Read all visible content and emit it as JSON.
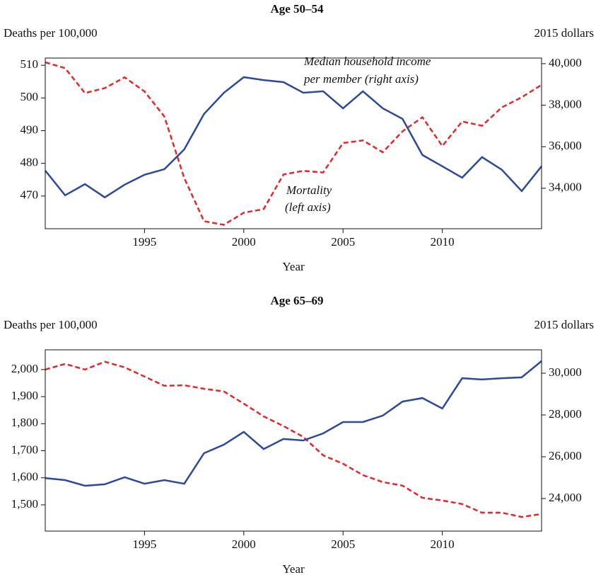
{
  "chart_data": [
    {
      "type": "line",
      "title": "Age 50–54",
      "y_label": "Deaths per 100,000",
      "y2_label": "2015 dollars",
      "x_label": "Year",
      "x": [
        1990,
        1991,
        1992,
        1993,
        1994,
        1995,
        1996,
        1997,
        1998,
        1999,
        2000,
        2001,
        2002,
        2003,
        2004,
        2005,
        2006,
        2007,
        2008,
        2009,
        2010,
        2011,
        2012,
        2013,
        2014,
        2015
      ],
      "xlim": [
        1990,
        2015
      ],
      "xticks": [
        1995,
        2000,
        2005,
        2010
      ],
      "ylim": [
        460,
        512.2
      ],
      "yticks": [
        470,
        480,
        490,
        500,
        510
      ],
      "y2lim": [
        32050,
        40270
      ],
      "y2ticks": [
        {
          "value": 34000,
          "label": "34,000"
        },
        {
          "value": 36000,
          "label": "36,000"
        },
        {
          "value": 38000,
          "label": "38,000"
        },
        {
          "value": 40000,
          "label": "40,000"
        }
      ],
      "series": [
        {
          "color": "#e8262a",
          "dashed": true,
          "axis": "y",
          "values": [
            510.9,
            509.1,
            501.5,
            503,
            506.3,
            502,
            494.3,
            475.5,
            462.3,
            461.2,
            464.9,
            466,
            476.6,
            477.7,
            477.2,
            486.2,
            487,
            483.4,
            489.8,
            494.1,
            485.3,
            492.8,
            491.5,
            497.1,
            500.2,
            504
          ]
        },
        {
          "color": "#2b4a9b",
          "dashed": false,
          "axis": "y2",
          "values": [
            34850,
            33660,
            34200,
            33560,
            34170,
            34650,
            34920,
            35870,
            37580,
            38600,
            39350,
            39210,
            39110,
            38600,
            38670,
            37850,
            38670,
            37850,
            37340,
            35600,
            35060,
            34510,
            35500,
            34890,
            33860,
            35060
          ]
        }
      ],
      "annotations": [
        {
          "lines": [
            "Median household income",
            "per member (right axis)"
          ]
        },
        {
          "lines": [
            "Mortality",
            "(left axis)"
          ]
        }
      ]
    },
    {
      "type": "line",
      "title": "Age 65–69",
      "y_label": "Deaths per 100,000",
      "y2_label": "2015 dollars",
      "x_label": "Year",
      "x": [
        1990,
        1991,
        1992,
        1993,
        1994,
        1995,
        1996,
        1997,
        1998,
        1999,
        2000,
        2001,
        2002,
        2003,
        2004,
        2005,
        2006,
        2007,
        2008,
        2009,
        2010,
        2011,
        2012,
        2013,
        2014,
        2015
      ],
      "xlim": [
        1990,
        2015
      ],
      "xticks": [
        1995,
        2000,
        2005,
        2010
      ],
      "ylim": [
        1403,
        2073
      ],
      "yticks": [
        {
          "value": 1500,
          "label": "1,500"
        },
        {
          "value": 1600,
          "label": "1,600"
        },
        {
          "value": 1700,
          "label": "1,700"
        },
        {
          "value": 1800,
          "label": "1,800"
        },
        {
          "value": 1900,
          "label": "1,900"
        },
        {
          "value": 2000,
          "label": "2,000"
        }
      ],
      "y2lim": [
        22440,
        31120
      ],
      "y2ticks": [
        {
          "value": 24000,
          "label": "24,000"
        },
        {
          "value": 26000,
          "label": "26,000"
        },
        {
          "value": 28000,
          "label": "28,000"
        },
        {
          "value": 30000,
          "label": "30,000"
        }
      ],
      "series": [
        {
          "color": "#e8262a",
          "dashed": true,
          "axis": "y",
          "values": [
            2000,
            2021,
            2000,
            2029,
            2008,
            1974,
            1940,
            1942,
            1929,
            1919,
            1874,
            1827,
            1791,
            1751,
            1683,
            1652,
            1610,
            1584,
            1571,
            1526,
            1516,
            1503,
            1471,
            1471,
            1455,
            1466
          ]
        },
        {
          "color": "#2b4a9b",
          "dashed": false,
          "axis": "y2",
          "values": [
            24980,
            24880,
            24610,
            24680,
            25020,
            24710,
            24880,
            24710,
            26170,
            26580,
            27190,
            26370,
            26850,
            26780,
            27120,
            27660,
            27660,
            27970,
            28640,
            28810,
            28310,
            29760,
            29700,
            29760,
            29800,
            30580
          ]
        }
      ]
    }
  ]
}
